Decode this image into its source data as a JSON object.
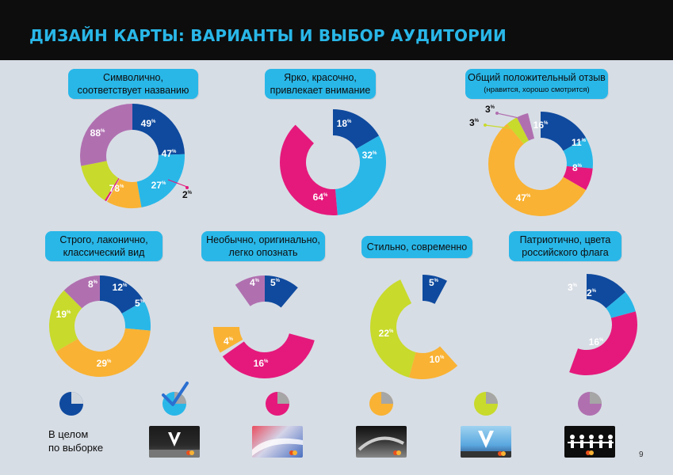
{
  "header": {
    "title": "ДИЗАЙН КАРТЫ: ВАРИАНТЫ И ВЫБОР АУДИТОРИИ"
  },
  "page_number": "9",
  "colors": {
    "dark_blue": "#0f4a9e",
    "light_blue": "#29b7e8",
    "orange": "#f9b233",
    "lime": "#c8da2b",
    "pink": "#e5197c",
    "purple": "#b070b0",
    "gray": "#a6a6a6",
    "panel_bg": "#d7dde5",
    "header_bg": "#0d0d0d"
  },
  "panels": [
    {
      "label": "Символично, соответствует названию",
      "label_lines": [
        "Символично,",
        "соответствует названию"
      ]
    },
    {
      "label": "Ярко, красочно, привлекает внимание",
      "label_lines": [
        "Ярко, красочно,",
        "привлекает внимание"
      ]
    },
    {
      "label": "Общий положительный отзыв (нравится, хорошо смотрится)",
      "label_lines": [
        "Общий положительный отзыв"
      ],
      "sub": "(нравится, хорошо смотрится)"
    },
    {
      "label": "Строго, лаконично, классический вид",
      "label_lines": [
        "Строго, лаконично,",
        "классический вид"
      ]
    },
    {
      "label": "Необычно, оригинально, легко опознать",
      "label_lines": [
        "Необычно, оригинально,",
        "легко опознать"
      ]
    },
    {
      "label": "Стильно, современно",
      "label_lines": [
        "Стильно, современно"
      ]
    },
    {
      "label": "Патриотично, цвета российского флага",
      "label_lines": [
        "Патриотично, цвета",
        "российского флага"
      ]
    }
  ],
  "chart_data": [
    {
      "type": "pie",
      "title": "Символично, соответствует названию",
      "series": [
        {
          "name": "dark_blue",
          "values": [
            49
          ]
        },
        {
          "name": "light_blue",
          "values": [
            47
          ]
        },
        {
          "name": "orange",
          "values": [
            27
          ]
        },
        {
          "name": "pink",
          "values": [
            2
          ]
        },
        {
          "name": "lime",
          "values": [
            78
          ]
        },
        {
          "name": "purple",
          "values": [
            88
          ]
        }
      ]
    },
    {
      "type": "pie",
      "title": "Ярко, красочно, привлекает внимание",
      "series": [
        {
          "name": "dark_blue",
          "values": [
            18
          ]
        },
        {
          "name": "light_blue",
          "values": [
            32
          ]
        },
        {
          "name": "pink",
          "values": [
            64
          ]
        }
      ]
    },
    {
      "type": "pie",
      "title": "Общий положительный отзыв",
      "series": [
        {
          "name": "dark_blue",
          "values": [
            16
          ]
        },
        {
          "name": "light_blue",
          "values": [
            11
          ]
        },
        {
          "name": "pink",
          "values": [
            8
          ]
        },
        {
          "name": "orange",
          "values": [
            47
          ]
        },
        {
          "name": "lime",
          "values": [
            3
          ]
        },
        {
          "name": "purple",
          "values": [
            3
          ]
        }
      ]
    },
    {
      "type": "pie",
      "title": "Строго, лаконично, классический вид",
      "series": [
        {
          "name": "dark_blue",
          "values": [
            12
          ]
        },
        {
          "name": "light_blue",
          "values": [
            5
          ]
        },
        {
          "name": "orange",
          "values": [
            29
          ]
        },
        {
          "name": "lime",
          "values": [
            19
          ]
        },
        {
          "name": "purple",
          "values": [
            8
          ]
        }
      ]
    },
    {
      "type": "pie",
      "title": "Необычно, оригинально, легко опознать",
      "series": [
        {
          "name": "dark_blue",
          "values": [
            5
          ]
        },
        {
          "name": "pink",
          "values": [
            16
          ]
        },
        {
          "name": "orange",
          "values": [
            4
          ]
        },
        {
          "name": "purple",
          "values": [
            4
          ]
        }
      ]
    },
    {
      "type": "pie",
      "title": "Стильно, современно",
      "series": [
        {
          "name": "dark_blue",
          "values": [
            5
          ]
        },
        {
          "name": "orange",
          "values": [
            10
          ]
        },
        {
          "name": "lime",
          "values": [
            22
          ]
        }
      ]
    },
    {
      "type": "pie",
      "title": "Патриотично, цвета российского флага",
      "series": [
        {
          "name": "dark_blue",
          "values": [
            3
          ]
        },
        {
          "name": "light_blue",
          "values": [
            2
          ]
        },
        {
          "name": "pink",
          "values": [
            16
          ]
        }
      ]
    }
  ],
  "legend": {
    "caption_lines": [
      "В целом",
      "по выборке"
    ]
  }
}
